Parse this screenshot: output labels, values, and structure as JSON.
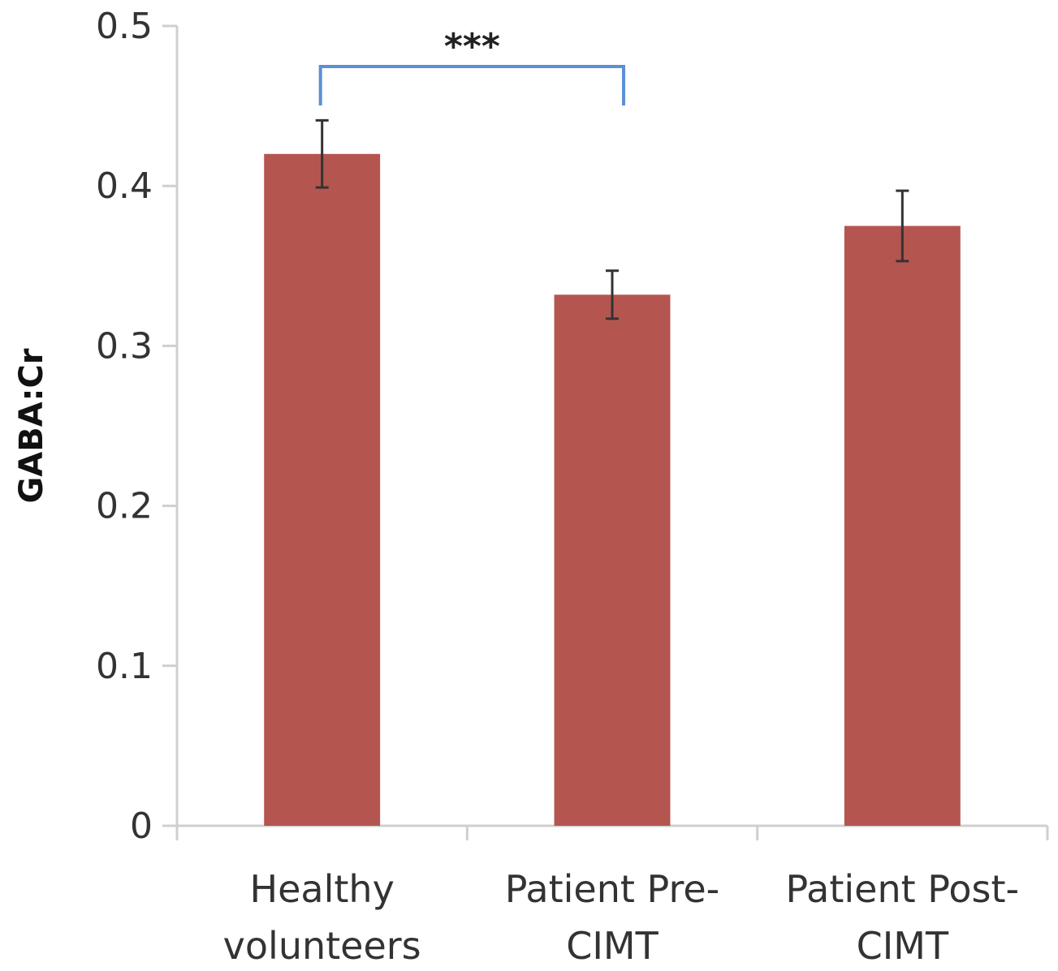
{
  "chart_data": {
    "type": "bar",
    "categories": [
      [
        "Healthy",
        "volunteers"
      ],
      [
        "Patient Pre-",
        "CIMT"
      ],
      [
        "Patient Post-",
        "CIMT"
      ]
    ],
    "values": [
      0.42,
      0.332,
      0.375
    ],
    "errors": [
      0.021,
      0.015,
      0.022
    ],
    "ylabel": "GABA:Cr",
    "ylim": [
      0,
      0.5
    ],
    "yticks": [
      0,
      0.1,
      0.2,
      0.3,
      0.4,
      0.5
    ],
    "ytick_labels": [
      "0",
      "0.1",
      "0.2",
      "0.3",
      "0.4",
      "0.5"
    ],
    "grid": false,
    "legend": "none",
    "bar_color": "#b55550",
    "significance": [
      {
        "from": 0,
        "to": 1,
        "label": "***",
        "color": "#5b8fd6"
      }
    ]
  }
}
